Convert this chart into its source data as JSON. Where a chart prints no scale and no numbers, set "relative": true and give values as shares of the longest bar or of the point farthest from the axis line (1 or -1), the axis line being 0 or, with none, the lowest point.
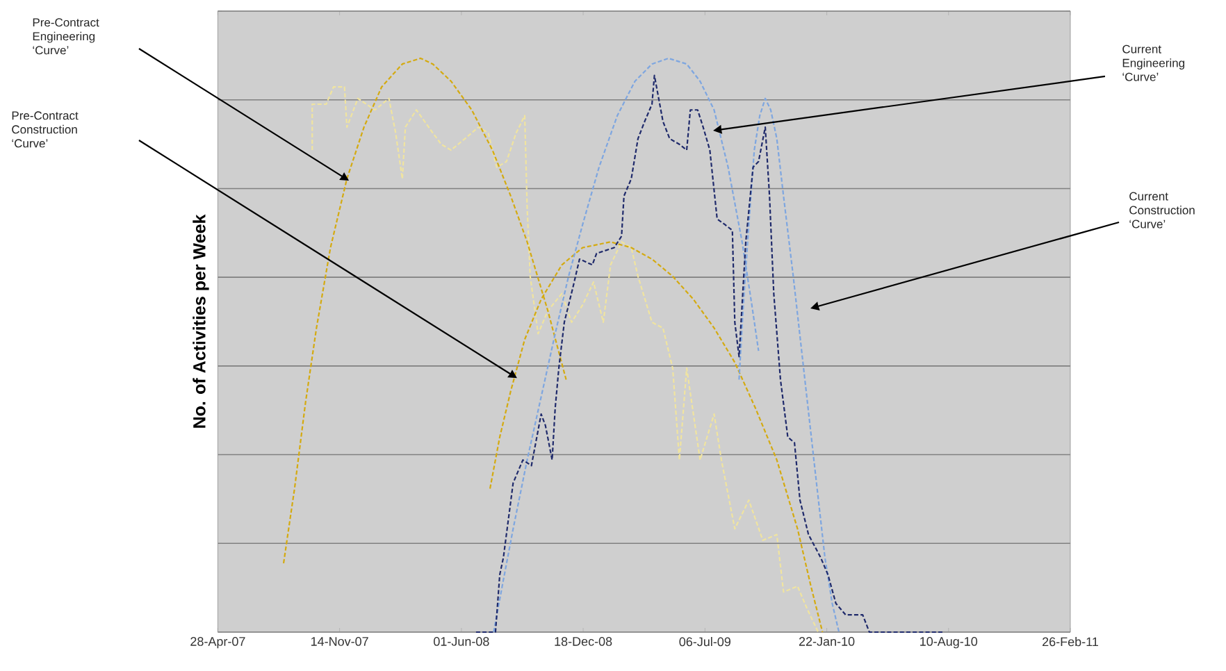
{
  "chart_data": {
    "type": "line",
    "relative": true,
    "ylabel": "No. of Activities per Week",
    "xlim": [
      "2007-04-28",
      "2011-02-26"
    ],
    "xticks": [
      {
        "value": "2007-04-28",
        "label": "28-Apr-07"
      },
      {
        "value": "2007-11-14",
        "label": "14-Nov-07"
      },
      {
        "value": "2008-06-01",
        "label": "01-Jun-08"
      },
      {
        "value": "2008-12-18",
        "label": "18-Dec-08"
      },
      {
        "value": "2009-07-06",
        "label": "06-Jul-09"
      },
      {
        "value": "2010-01-22",
        "label": "22-Jan-10"
      },
      {
        "value": "2010-08-10",
        "label": "10-Aug-10"
      },
      {
        "value": "2011-02-26",
        "label": "26-Feb-11"
      }
    ],
    "grid": "y",
    "line_style": "dashed",
    "series": [
      {
        "color": "#f0e4a0",
        "x": [
          "2007-09-30",
          "2007-09-30",
          "2007-10-23",
          "2007-11-04",
          "2007-11-22",
          "2007-11-26",
          "2007-12-14",
          "2008-01-11",
          "2008-02-03",
          "2008-02-14",
          "2008-02-25",
          "2008-03-01",
          "2008-03-19",
          "2008-04-15",
          "2008-04-29",
          "2008-05-15",
          "2008-06-07",
          "2008-06-29",
          "2008-07-15",
          "2008-07-29",
          "2008-08-14",
          "2008-08-30",
          "2008-09-13",
          "2008-09-17",
          "2008-09-22",
          "2008-10-05",
          "2008-10-21",
          "2008-11-13",
          "2008-11-29",
          "2008-12-17",
          "2009-01-04",
          "2009-01-20",
          "2009-02-01",
          "2009-02-19",
          "2009-03-07",
          "2009-03-18",
          "2009-04-10",
          "2009-04-28",
          "2009-05-14",
          "2009-05-25",
          "2009-06-06",
          "2009-06-28",
          "2009-07-21",
          "2009-08-02",
          "2009-08-24",
          "2009-09-16",
          "2009-10-09",
          "2009-11-01",
          "2009-11-12",
          "2009-12-05",
          "2009-12-21",
          "2010-01-08"
        ],
        "values": [
          0.84,
          0.92,
          0.92,
          0.95,
          0.95,
          0.88,
          0.93,
          0.91,
          0.93,
          0.87,
          0.79,
          0.88,
          0.91,
          0.87,
          0.85,
          0.84,
          0.86,
          0.88,
          0.87,
          0.81,
          0.82,
          0.87,
          0.9,
          0.74,
          0.62,
          0.52,
          0.56,
          0.59,
          0.54,
          0.57,
          0.61,
          0.54,
          0.64,
          0.68,
          0.67,
          0.62,
          0.54,
          0.53,
          0.46,
          0.3,
          0.46,
          0.3,
          0.38,
          0.3,
          0.18,
          0.23,
          0.16,
          0.17,
          0.07,
          0.08,
          0.04,
          0
        ]
      },
      {
        "color": "#d4aa10",
        "x": [
          "2007-08-14",
          "2007-09-01",
          "2007-09-19",
          "2007-10-07",
          "2007-10-30",
          "2007-11-26",
          "2007-12-24",
          "2008-01-22",
          "2008-02-25",
          "2008-03-26",
          "2008-04-15",
          "2008-05-15",
          "2008-06-18",
          "2008-07-22",
          "2008-08-21",
          "2008-09-17",
          "2008-10-21",
          "2008-11-20"
        ],
        "values": [
          0.12,
          0.25,
          0.4,
          0.53,
          0.67,
          0.79,
          0.88,
          0.95,
          0.99,
          1.0,
          0.99,
          0.96,
          0.91,
          0.84,
          0.76,
          0.68,
          0.56,
          0.44
        ]
      },
      {
        "color": "#d4aa10",
        "x": [
          "2008-07-18",
          "2008-08-03",
          "2008-08-21",
          "2008-09-13",
          "2008-10-10",
          "2008-11-13",
          "2008-12-17",
          "2009-02-01",
          "2009-03-07",
          "2009-04-10",
          "2009-05-14",
          "2009-06-17",
          "2009-07-21",
          "2009-08-24",
          "2009-09-27",
          "2009-11-01",
          "2009-12-05",
          "2009-12-27",
          "2010-01-15"
        ],
        "values": [
          0.25,
          0.34,
          0.42,
          0.51,
          0.58,
          0.64,
          0.67,
          0.68,
          0.67,
          0.65,
          0.62,
          0.58,
          0.53,
          0.47,
          0.39,
          0.3,
          0.18,
          0.08,
          0
        ]
      },
      {
        "color": "#7ea6e0",
        "x": [
          "2008-07-24",
          "2008-08-07",
          "2008-08-25",
          "2008-09-17",
          "2008-10-10",
          "2008-11-02",
          "2008-11-24",
          "2008-12-17",
          "2009-01-13",
          "2009-02-12",
          "2009-03-13",
          "2009-04-10",
          "2009-05-07",
          "2009-06-06",
          "2009-06-28",
          "2009-07-21",
          "2009-08-13",
          "2009-09-05",
          "2009-09-21",
          "2009-10-02"
        ],
        "values": [
          0,
          0.08,
          0.18,
          0.3,
          0.41,
          0.52,
          0.62,
          0.71,
          0.81,
          0.9,
          0.96,
          0.99,
          1.0,
          0.99,
          0.96,
          0.91,
          0.81,
          0.68,
          0.57,
          0.49
        ]
      },
      {
        "color": "#7ea6e0",
        "x": [
          "2009-08-31",
          "2009-09-07",
          "2009-09-16",
          "2009-09-25",
          "2009-10-04",
          "2009-10-13",
          "2009-10-22",
          "2009-11-01",
          "2009-11-12",
          "2009-11-28",
          "2009-12-16",
          "2010-01-03",
          "2010-01-19",
          "2010-01-31",
          "2010-02-11"
        ],
        "values": [
          0.44,
          0.57,
          0.71,
          0.84,
          0.9,
          0.93,
          0.91,
          0.86,
          0.76,
          0.62,
          0.45,
          0.28,
          0.13,
          0.05,
          0
        ]
      },
      {
        "color": "#1f2a6b",
        "x": [
          "2008-06-25",
          "2008-07-27",
          "2008-08-03",
          "2008-08-09",
          "2008-08-25",
          "2008-09-10",
          "2008-09-24",
          "2008-10-10",
          "2008-10-17",
          "2008-10-28",
          "2008-11-02",
          "2008-11-08",
          "2008-11-17",
          "2008-12-01",
          "2008-12-12",
          "2009-01-02",
          "2009-01-09",
          "2009-02-07",
          "2009-02-19",
          "2009-02-23",
          "2009-03-07",
          "2009-03-18",
          "2009-03-29",
          "2009-04-10",
          "2009-04-14",
          "2009-04-21",
          "2009-04-28",
          "2009-05-09",
          "2009-05-25",
          "2009-06-06",
          "2009-06-12",
          "2009-06-24",
          "2009-07-03",
          "2009-07-14",
          "2009-07-26",
          "2009-08-08",
          "2009-08-20",
          "2009-08-24",
          "2009-08-31",
          "2009-09-11",
          "2009-09-23",
          "2009-10-02",
          "2009-10-13",
          "2009-10-20",
          "2009-10-27",
          "2009-11-07",
          "2009-11-19",
          "2009-11-30",
          "2009-12-09",
          "2009-12-23",
          "2010-01-12",
          "2010-01-24",
          "2010-02-06",
          "2010-02-22",
          "2010-03-22",
          "2010-04-02",
          "2010-08-01"
        ],
        "values": [
          0,
          0,
          0.1,
          0.13,
          0.26,
          0.3,
          0.29,
          0.38,
          0.36,
          0.3,
          0.39,
          0.46,
          0.54,
          0.6,
          0.65,
          0.64,
          0.66,
          0.67,
          0.69,
          0.76,
          0.79,
          0.86,
          0.89,
          0.92,
          0.97,
          0.93,
          0.89,
          0.86,
          0.85,
          0.84,
          0.91,
          0.91,
          0.88,
          0.84,
          0.72,
          0.71,
          0.7,
          0.54,
          0.48,
          0.68,
          0.81,
          0.82,
          0.88,
          0.76,
          0.59,
          0.44,
          0.34,
          0.33,
          0.23,
          0.17,
          0.13,
          0.1,
          0.05,
          0.03,
          0.03,
          0,
          0
        ]
      }
    ],
    "annotations": [
      "Pre-Contract Engineering ‘Curve’",
      "Pre-Contract Construction ‘Curve’",
      "Current Engineering ‘Curve’",
      "Current Construction ‘Curve’"
    ]
  }
}
